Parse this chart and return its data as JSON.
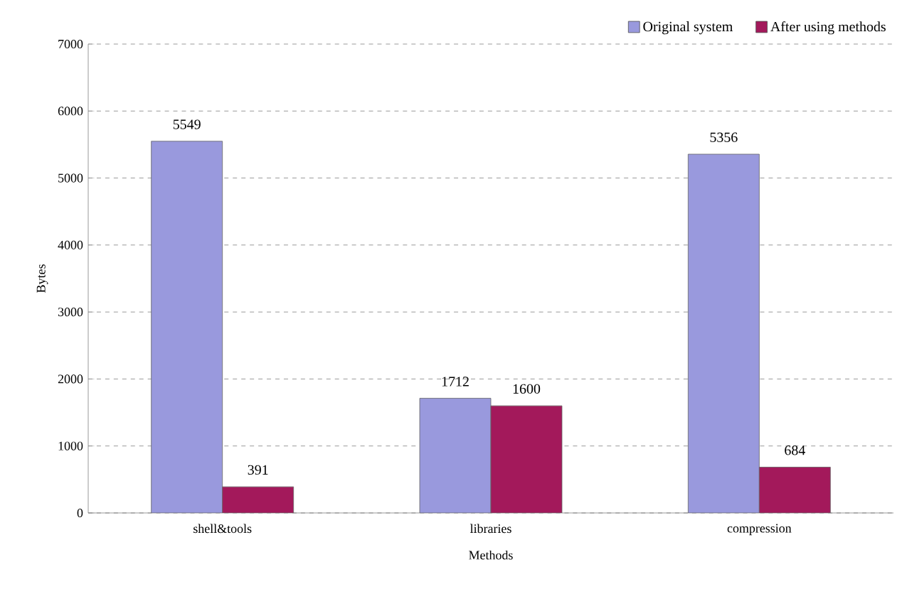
{
  "chart_data": {
    "type": "bar",
    "xlabel": "Methods",
    "ylabel": "Bytes",
    "categories": [
      "shell&tools",
      "libraries",
      "compression"
    ],
    "series": [
      {
        "name": "Original system",
        "color": "#9999dd",
        "values": [
          5549,
          1712,
          5356
        ]
      },
      {
        "name": "After using methods",
        "color": "#a3195b",
        "values": [
          391,
          1600,
          684
        ]
      }
    ],
    "ylim": [
      0,
      7000
    ],
    "yticks": [
      0,
      1000,
      2000,
      3000,
      4000,
      5000,
      6000,
      7000
    ],
    "grid": "y",
    "legend": "top right",
    "data_labels": true
  }
}
